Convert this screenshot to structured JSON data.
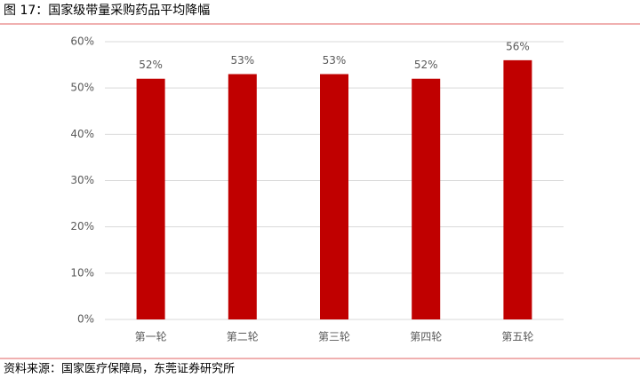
{
  "chart_data": {
    "type": "bar",
    "title": "图 17：国家级带量采购药品平均降幅",
    "source": "资料来源：国家医疗保障局，东莞证券研究所",
    "categories": [
      "第一轮",
      "第二轮",
      "第三轮",
      "第四轮",
      "第五轮"
    ],
    "values": [
      52,
      53,
      53,
      52,
      56
    ],
    "value_labels": [
      "52%",
      "53%",
      "53%",
      "52%",
      "56%"
    ],
    "color": "#c00000",
    "ylim": [
      0,
      60
    ],
    "yticks": [
      {
        "value": 0,
        "label": "0%"
      },
      {
        "value": 10,
        "label": "10%"
      },
      {
        "value": 20,
        "label": "20%"
      },
      {
        "value": 30,
        "label": "30%"
      },
      {
        "value": 40,
        "label": "40%"
      },
      {
        "value": 50,
        "label": "50%"
      },
      {
        "value": 60,
        "label": "60%"
      }
    ],
    "grid": true
  }
}
